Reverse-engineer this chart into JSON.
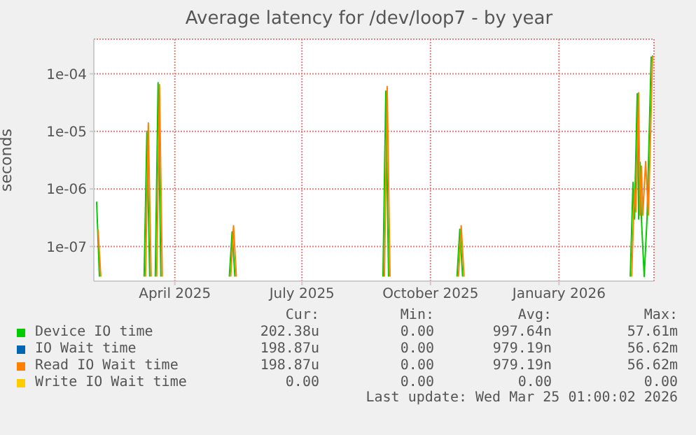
{
  "chart_data": {
    "type": "line",
    "title": "Average latency for /dev/loop7 - by year",
    "ylabel": "seconds",
    "series": [
      {
        "name": "Device IO time",
        "color": "#00cc00",
        "x": [
          "2025-02-04",
          "2025-02-06",
          "2025-02-07",
          "2025-03-10",
          "2025-03-12",
          "2025-03-14",
          "2025-03-15",
          "2025-03-18",
          "2025-03-20",
          "2025-03-22",
          "2025-03-23",
          "2025-05-10",
          "2025-05-12",
          "2025-05-14",
          "2025-05-15",
          "2025-08-28",
          "2025-08-30",
          "2025-09-01",
          "2025-09-02",
          "2025-10-20",
          "2025-10-22",
          "2025-10-24",
          "2025-10-25",
          "2026-02-21",
          "2026-02-23",
          "2026-02-24",
          "2026-02-26",
          "2026-02-27",
          "2026-02-28",
          "2026-03-01",
          "2026-03-03",
          "2026-03-05",
          "2026-03-08"
        ],
        "values": [
          6e-07,
          3e-08,
          null,
          3e-08,
          1e-05,
          3e-08,
          null,
          3e-08,
          7e-05,
          3e-08,
          null,
          3e-08,
          1.8e-07,
          3e-08,
          null,
          3e-08,
          5e-05,
          3e-08,
          null,
          3e-08,
          2e-07,
          3e-08,
          null,
          3e-08,
          1.3e-06,
          3e-07,
          4.5e-05,
          3e-07,
          2.9e-06,
          3e-07,
          3e-08,
          3e-07,
          0.0002
        ]
      },
      {
        "name": "IO Wait time",
        "color": "#0066b3"
      },
      {
        "name": "Read IO Wait time",
        "color": "#ff8000",
        "x": [
          "2025-02-05",
          "2025-02-07",
          "2025-02-08",
          "2025-03-11",
          "2025-03-13",
          "2025-03-15",
          "2025-03-16",
          "2025-03-19",
          "2025-03-21",
          "2025-03-23",
          "2025-03-24",
          "2025-05-11",
          "2025-05-13",
          "2025-05-15",
          "2025-05-16",
          "2025-08-29",
          "2025-08-31",
          "2025-09-02",
          "2025-09-03",
          "2025-10-21",
          "2025-10-23",
          "2025-10-25",
          "2025-10-26",
          "2026-02-22",
          "2026-02-24",
          "2026-02-25",
          "2026-02-27",
          "2026-02-28",
          "2026-03-01",
          "2026-03-02",
          "2026-03-04",
          "2026-03-06",
          "2026-03-09"
        ],
        "values": [
          2e-07,
          3e-08,
          null,
          3e-08,
          1.4e-05,
          3e-08,
          null,
          3e-08,
          6.5e-05,
          3e-08,
          null,
          3e-08,
          2.3e-07,
          3e-08,
          null,
          3e-08,
          6e-05,
          3e-08,
          null,
          3e-08,
          2.3e-07,
          3e-08,
          null,
          3e-08,
          1e-06,
          4e-07,
          4.7e-05,
          3.5e-07,
          2.5e-06,
          3.5e-07,
          3e-06,
          3.5e-07,
          0.00021
        ]
      },
      {
        "name": "Write IO Wait time",
        "color": "#ffcc00"
      }
    ],
    "xlim": [
      "2025-02-02",
      "2026-03-10"
    ],
    "xticks": [
      {
        "value": "2025-04-01",
        "label": "April 2025"
      },
      {
        "value": "2025-07-01",
        "label": "July 2025"
      },
      {
        "value": "2025-10-01",
        "label": "October 2025"
      },
      {
        "value": "2026-01-01",
        "label": "January 2026"
      }
    ],
    "ylim": [
      2.5e-08,
      0.0004
    ],
    "yticks": [
      {
        "value": 1e-07,
        "label": "1e-07"
      },
      {
        "value": 1e-06,
        "label": "1e-06"
      },
      {
        "value": 1e-05,
        "label": "1e-05"
      },
      {
        "value": 0.0001,
        "label": "1e-04"
      }
    ],
    "log": "y",
    "grid": true,
    "legend": "bottom",
    "marker": "none",
    "line_style": "solid",
    "annotations": [
      "Cur:",
      "Min:",
      "Avg:",
      "Max:",
      "202.38u",
      "0.00",
      "997.64n",
      "57.61m",
      "198.87u",
      "0.00",
      "979.19n",
      "56.62m",
      "198.87u",
      "0.00",
      "979.19n",
      "56.62m",
      "0.00",
      "0.00",
      "0.00",
      "0.00",
      "Last update: Wed Mar 25 01:00:02 2026"
    ]
  }
}
